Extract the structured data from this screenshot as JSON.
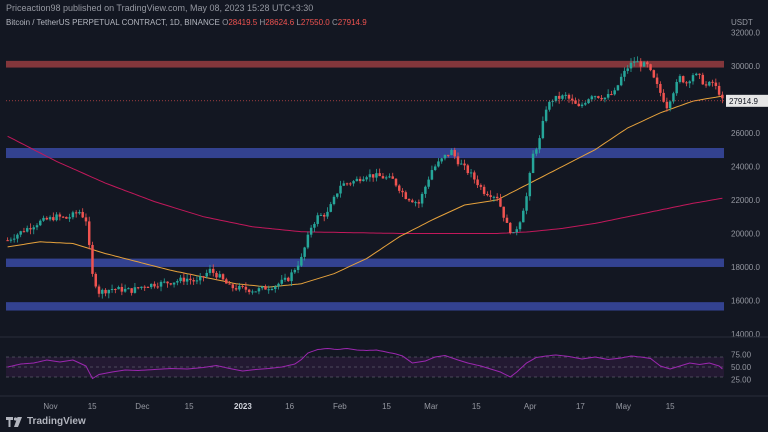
{
  "header": {
    "publish_line": "Priceaction98 published on TradingView.com, May 08, 2023 15:28 UTC+3:30",
    "symbol": "Bitcoin / TetherUS PERPETUAL CONTRACT, 1D, BINANCE",
    "ohlc": [
      {
        "label": "O",
        "value": "28419.5"
      },
      {
        "label": "H",
        "value": "28624.6"
      },
      {
        "label": "L",
        "value": "27550.0"
      },
      {
        "label": "C",
        "value": "27914.9"
      }
    ],
    "currency": "USDT"
  },
  "footer": {
    "brand": "TradingView"
  },
  "colors": {
    "bull": "#26a69a",
    "bear": "#ef5350",
    "ma_fast": "#e6a23c",
    "ma_slow": "#c2185b",
    "rsi": "#9c27b0",
    "resistance_zone": "#e05050",
    "support_zone": "#3f51b5"
  },
  "chart_data": {
    "type": "candlestick",
    "title": "Bitcoin / TetherUS PERPETUAL CONTRACT, 1D, BINANCE",
    "ylabel": "USDT",
    "last_price": "27914.9",
    "ylim": [
      14000,
      32500
    ],
    "y_ticks": [
      "32000.0",
      "30000.0",
      "28000.0",
      "26000.0",
      "24000.0",
      "22000.0",
      "20000.0",
      "18000.0",
      "16000.0",
      "14000.0"
    ],
    "x_ticks": [
      "Nov",
      "15",
      "Dec",
      "15",
      "2023",
      "16",
      "Feb",
      "15",
      "Mar",
      "15",
      "Apr",
      "17",
      "May",
      "15"
    ],
    "zones": [
      {
        "kind": "resistance",
        "low": 29900,
        "high": 30300
      },
      {
        "kind": "support",
        "low": 24500,
        "high": 25100
      },
      {
        "kind": "support",
        "low": 18000,
        "high": 18500
      },
      {
        "kind": "support",
        "low": 15400,
        "high": 15900
      }
    ],
    "price_path": [
      [
        0,
        19600
      ],
      [
        5,
        20200
      ],
      [
        10,
        20700
      ],
      [
        15,
        21000
      ],
      [
        18,
        20900
      ],
      [
        22,
        21300
      ],
      [
        24,
        20800
      ],
      [
        26,
        17500
      ],
      [
        28,
        16500
      ],
      [
        32,
        16700
      ],
      [
        38,
        16600
      ],
      [
        42,
        16900
      ],
      [
        50,
        17100
      ],
      [
        55,
        17300
      ],
      [
        58,
        17100
      ],
      [
        62,
        17800
      ],
      [
        65,
        17400
      ],
      [
        68,
        16800
      ],
      [
        72,
        16700
      ],
      [
        76,
        16600
      ],
      [
        82,
        16900
      ],
      [
        86,
        17300
      ],
      [
        90,
        18500
      ],
      [
        93,
        20400
      ],
      [
        95,
        21000
      ],
      [
        98,
        21200
      ],
      [
        102,
        22900
      ],
      [
        106,
        23100
      ],
      [
        110,
        23500
      ],
      [
        114,
        23400
      ],
      [
        118,
        23200
      ],
      [
        122,
        22200
      ],
      [
        126,
        21800
      ],
      [
        130,
        23800
      ],
      [
        134,
        24600
      ],
      [
        136,
        24900
      ],
      [
        138,
        24300
      ],
      [
        142,
        23500
      ],
      [
        146,
        22500
      ],
      [
        150,
        22200
      ],
      [
        153,
        20500
      ],
      [
        155,
        19900
      ],
      [
        157,
        20800
      ],
      [
        159,
        22200
      ],
      [
        161,
        24700
      ],
      [
        163,
        25600
      ],
      [
        165,
        27500
      ],
      [
        167,
        28000
      ],
      [
        171,
        28200
      ],
      [
        175,
        27500
      ],
      [
        179,
        28300
      ],
      [
        183,
        28100
      ],
      [
        186,
        28400
      ],
      [
        188,
        29300
      ],
      [
        190,
        29900
      ],
      [
        192,
        30300
      ],
      [
        194,
        30100
      ],
      [
        196,
        30000
      ],
      [
        198,
        29200
      ],
      [
        200,
        28400
      ],
      [
        202,
        27600
      ],
      [
        204,
        28500
      ],
      [
        206,
        29300
      ],
      [
        208,
        29000
      ],
      [
        210,
        29500
      ],
      [
        212,
        29300
      ],
      [
        214,
        28800
      ],
      [
        216,
        29000
      ],
      [
        218,
        28419.5
      ],
      [
        219,
        27914.9
      ]
    ],
    "ma_fast": [
      [
        0,
        19200
      ],
      [
        10,
        19500
      ],
      [
        20,
        19400
      ],
      [
        30,
        18800
      ],
      [
        40,
        18300
      ],
      [
        50,
        17800
      ],
      [
        60,
        17400
      ],
      [
        70,
        17000
      ],
      [
        80,
        16800
      ],
      [
        90,
        17000
      ],
      [
        100,
        17600
      ],
      [
        110,
        18500
      ],
      [
        120,
        19800
      ],
      [
        130,
        20800
      ],
      [
        140,
        21700
      ],
      [
        150,
        22000
      ],
      [
        160,
        23000
      ],
      [
        170,
        24000
      ],
      [
        180,
        25000
      ],
      [
        190,
        26300
      ],
      [
        200,
        27200
      ],
      [
        210,
        27900
      ],
      [
        219,
        28200
      ]
    ],
    "ma_slow": [
      [
        0,
        25800
      ],
      [
        15,
        24300
      ],
      [
        30,
        23000
      ],
      [
        45,
        21900
      ],
      [
        60,
        21000
      ],
      [
        75,
        20400
      ],
      [
        90,
        20100
      ],
      [
        105,
        20050
      ],
      [
        120,
        20000
      ],
      [
        135,
        20000
      ],
      [
        150,
        20000
      ],
      [
        160,
        20100
      ],
      [
        170,
        20300
      ],
      [
        180,
        20600
      ],
      [
        190,
        21000
      ],
      [
        200,
        21400
      ],
      [
        210,
        21800
      ],
      [
        219,
        22100
      ]
    ],
    "rsi": {
      "ticks": [
        "75.00",
        "50.00",
        "25.00"
      ],
      "ylim": [
        0,
        100
      ],
      "band": [
        30,
        70
      ],
      "values": [
        [
          0,
          50
        ],
        [
          4,
          56
        ],
        [
          8,
          58
        ],
        [
          12,
          64
        ],
        [
          16,
          60
        ],
        [
          20,
          64
        ],
        [
          24,
          52
        ],
        [
          26,
          27
        ],
        [
          28,
          35
        ],
        [
          32,
          40
        ],
        [
          36,
          44
        ],
        [
          40,
          43
        ],
        [
          45,
          45
        ],
        [
          50,
          47
        ],
        [
          55,
          46
        ],
        [
          60,
          49
        ],
        [
          64,
          53
        ],
        [
          68,
          47
        ],
        [
          72,
          42
        ],
        [
          76,
          45
        ],
        [
          80,
          47
        ],
        [
          84,
          50
        ],
        [
          88,
          56
        ],
        [
          90,
          65
        ],
        [
          92,
          78
        ],
        [
          95,
          85
        ],
        [
          98,
          87
        ],
        [
          101,
          85
        ],
        [
          104,
          87
        ],
        [
          107,
          84
        ],
        [
          110,
          83
        ],
        [
          113,
          84
        ],
        [
          116,
          80
        ],
        [
          119,
          76
        ],
        [
          121,
          72
        ],
        [
          124,
          58
        ],
        [
          128,
          62
        ],
        [
          131,
          70
        ],
        [
          134,
          73
        ],
        [
          138,
          64
        ],
        [
          141,
          58
        ],
        [
          145,
          52
        ],
        [
          148,
          46
        ],
        [
          151,
          40
        ],
        [
          154,
          30
        ],
        [
          156,
          40
        ],
        [
          159,
          58
        ],
        [
          162,
          69
        ],
        [
          165,
          72
        ],
        [
          168,
          74
        ],
        [
          172,
          71
        ],
        [
          176,
          66
        ],
        [
          180,
          70
        ],
        [
          184,
          65
        ],
        [
          188,
          68
        ],
        [
          191,
          72
        ],
        [
          194,
          70
        ],
        [
          197,
          67
        ],
        [
          200,
          52
        ],
        [
          203,
          46
        ],
        [
          206,
          52
        ],
        [
          209,
          58
        ],
        [
          212,
          55
        ],
        [
          215,
          58
        ],
        [
          218,
          52
        ],
        [
          219,
          46
        ]
      ]
    }
  }
}
